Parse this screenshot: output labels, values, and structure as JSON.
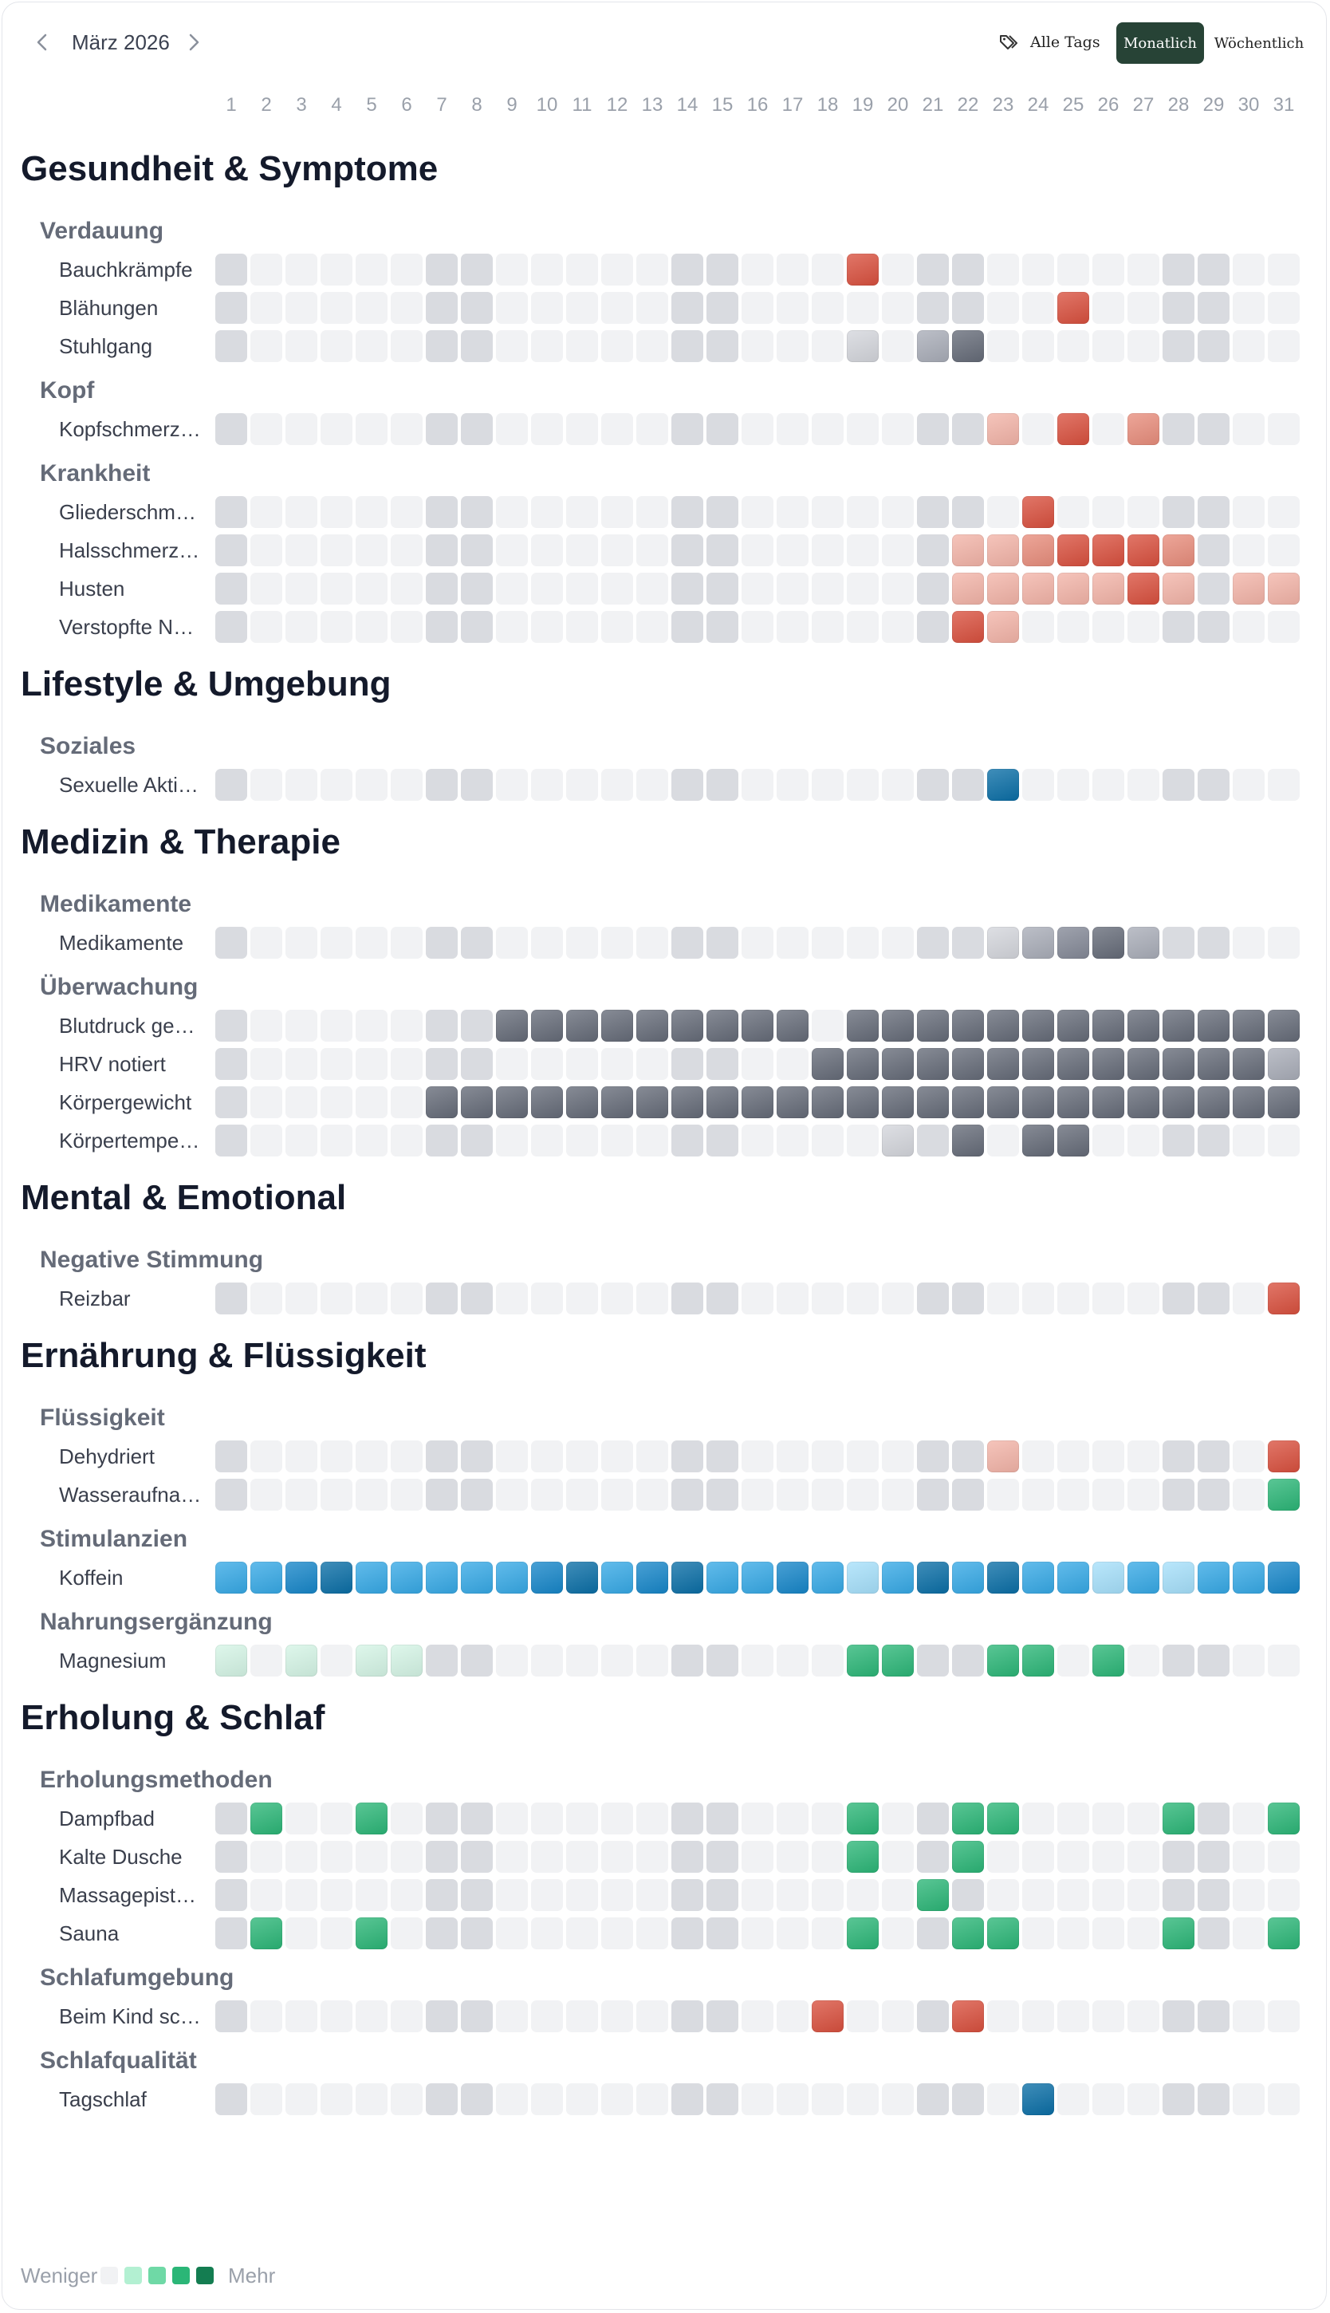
{
  "header": {
    "month_label": "März 2026",
    "all_tags_label": "Alle Tags",
    "monthly_label": "Monatlich",
    "weekly_label": "Wöchentlich"
  },
  "days": [
    "1",
    "2",
    "3",
    "4",
    "5",
    "6",
    "7",
    "8",
    "9",
    "10",
    "11",
    "12",
    "13",
    "14",
    "15",
    "16",
    "17",
    "18",
    "19",
    "20",
    "21",
    "22",
    "23",
    "24",
    "25",
    "26",
    "27",
    "28",
    "29",
    "30",
    "31"
  ],
  "legend": {
    "less": "Weniger",
    "more": "Mehr"
  },
  "colors": {
    "empty": "#f1f2f4",
    "weekend": "#d9dbe0",
    "red": [
      "#f3b4a8",
      "#e88d7c",
      "#d9503e",
      "#c63b2b"
    ],
    "slate": [
      "#d4d6dc",
      "#a9adb8",
      "#848997",
      "#656b78"
    ],
    "blue": [
      "#a6e0fb",
      "#36a9e6",
      "#1686c9",
      "#0a6ea6"
    ],
    "green": [
      "#d5f5e6",
      "#b3f0d2",
      "#6fd9a6",
      "#2bb677",
      "#147d51"
    ]
  },
  "groups": [
    {
      "title": "Gesundheit & Symptome",
      "subs": [
        {
          "title": "Verdauung",
          "rows": [
            {
              "label": "Bauchkrämpfe",
              "color": "red",
              "values": {
                "19": 3
              }
            },
            {
              "label": "Blähungen",
              "color": "red",
              "values": {
                "25": 3
              }
            },
            {
              "label": "Stuhlgang",
              "color": "slate",
              "values": {
                "19": 1,
                "21": 2,
                "22": 4
              }
            }
          ]
        },
        {
          "title": "Kopf",
          "rows": [
            {
              "label": "Kopfschmerz…",
              "color": "red",
              "values": {
                "23": 1,
                "25": 3,
                "27": 2
              }
            }
          ]
        },
        {
          "title": "Krankheit",
          "rows": [
            {
              "label": "Gliederschme…",
              "color": "red",
              "values": {
                "24": 3
              }
            },
            {
              "label": "Halsschmerz…",
              "color": "red",
              "values": {
                "22": 1,
                "23": 1,
                "24": 2,
                "25": 3,
                "26": 3,
                "27": 3,
                "28": 2
              }
            },
            {
              "label": "Husten",
              "color": "red",
              "values": {
                "22": 1,
                "23": 1,
                "24": 1,
                "25": 1,
                "26": 1,
                "27": 3,
                "28": 1,
                "30": 1,
                "31": 1
              }
            },
            {
              "label": "Verstopfte Na…",
              "color": "red",
              "values": {
                "22": 3,
                "23": 1
              }
            }
          ]
        }
      ]
    },
    {
      "title": "Lifestyle & Umgebung",
      "subs": [
        {
          "title": "Soziales",
          "rows": [
            {
              "label": "Sexuelle Aktiv…",
              "color": "blue",
              "values": {
                "23": 4
              }
            }
          ]
        }
      ]
    },
    {
      "title": "Medizin & Therapie",
      "subs": [
        {
          "title": "Medikamente",
          "rows": [
            {
              "label": "Medikamente",
              "color": "slate",
              "values": {
                "23": 1,
                "24": 2,
                "25": 3,
                "26": 4,
                "27": 2
              }
            }
          ]
        },
        {
          "title": "Überwachung",
          "rows": [
            {
              "label": "Blutdruck ge…",
              "color": "slate",
              "values": {
                "9": 4,
                "10": 4,
                "11": 4,
                "12": 4,
                "13": 4,
                "14": 4,
                "15": 4,
                "16": 4,
                "17": 4,
                "19": 4,
                "20": 4,
                "21": 4,
                "22": 4,
                "23": 4,
                "24": 4,
                "25": 4,
                "26": 4,
                "27": 4,
                "28": 4,
                "29": 4,
                "30": 4,
                "31": 4
              }
            },
            {
              "label": "HRV notiert",
              "color": "slate",
              "values": {
                "18": 4,
                "19": 4,
                "20": 4,
                "21": 4,
                "22": 4,
                "23": 4,
                "24": 4,
                "25": 4,
                "26": 4,
                "27": 4,
                "28": 4,
                "29": 4,
                "30": 4,
                "31": 2
              }
            },
            {
              "label": "Körpergewicht",
              "color": "slate",
              "values": {
                "7": 4,
                "8": 4,
                "9": 4,
                "10": 4,
                "11": 4,
                "12": 4,
                "13": 4,
                "14": 4,
                "15": 4,
                "16": 4,
                "17": 4,
                "18": 4,
                "19": 4,
                "20": 4,
                "21": 4,
                "22": 4,
                "23": 4,
                "24": 4,
                "25": 4,
                "26": 4,
                "27": 4,
                "28": 4,
                "29": 4,
                "30": 4,
                "31": 4
              }
            },
            {
              "label": "Körpertemper…",
              "color": "slate",
              "values": {
                "20": 1,
                "22": 4,
                "24": 4,
                "25": 4
              }
            }
          ]
        }
      ]
    },
    {
      "title": "Mental & Emotional",
      "subs": [
        {
          "title": "Negative Stimmung",
          "rows": [
            {
              "label": "Reizbar",
              "color": "red",
              "values": {
                "31": 3
              }
            }
          ]
        }
      ]
    },
    {
      "title": "Ernährung & Flüssigkeit",
      "subs": [
        {
          "title": "Flüssigkeit",
          "rows": [
            {
              "label": "Dehydriert",
              "color": "red",
              "values": {
                "23": 1,
                "31": 3
              }
            },
            {
              "label": "Wasseraufna…",
              "color": "green",
              "values": {
                "31": 4
              }
            }
          ]
        },
        {
          "title": "Stimulanzien",
          "rows": [
            {
              "label": "Koffein",
              "color": "blue",
              "values": {
                "1": 2,
                "2": 2,
                "3": 3,
                "4": 4,
                "5": 2,
                "6": 2,
                "7": 2,
                "8": 2,
                "9": 2,
                "10": 3,
                "11": 4,
                "12": 2,
                "13": 3,
                "14": 4,
                "15": 2,
                "16": 2,
                "17": 3,
                "18": 2,
                "19": 1,
                "20": 2,
                "21": 4,
                "22": 2,
                "23": 4,
                "24": 2,
                "25": 2,
                "26": 1,
                "27": 2,
                "28": 1,
                "29": 2,
                "30": 2,
                "31": 3
              }
            }
          ]
        },
        {
          "title": "Nahrungsergänzung",
          "rows": [
            {
              "label": "Magnesium",
              "color": "green",
              "values": {
                "1": 1,
                "3": 1,
                "5": 1,
                "6": 1,
                "19": 4,
                "20": 4,
                "23": 4,
                "24": 4,
                "26": 4
              }
            }
          ]
        }
      ]
    },
    {
      "title": "Erholung & Schlaf",
      "subs": [
        {
          "title": "Erholungsmethoden",
          "rows": [
            {
              "label": "Dampfbad",
              "color": "green",
              "values": {
                "2": 4,
                "5": 4,
                "19": 4,
                "22": 4,
                "23": 4,
                "28": 4,
                "31": 4
              }
            },
            {
              "label": "Kalte Dusche",
              "color": "green",
              "values": {
                "19": 4,
                "22": 4
              }
            },
            {
              "label": "Massagepist…",
              "color": "green",
              "values": {
                "21": 4
              }
            },
            {
              "label": "Sauna",
              "color": "green",
              "values": {
                "2": 4,
                "5": 4,
                "19": 4,
                "22": 4,
                "23": 4,
                "28": 4,
                "31": 4
              }
            }
          ]
        },
        {
          "title": "Schlafumgebung",
          "rows": [
            {
              "label": "Beim Kind sc…",
              "color": "red",
              "values": {
                "18": 3,
                "22": 3
              }
            }
          ]
        },
        {
          "title": "Schlafqualität",
          "rows": [
            {
              "label": "Tagschlaf",
              "color": "blue",
              "values": {
                "24": 4
              }
            }
          ]
        }
      ]
    }
  ]
}
